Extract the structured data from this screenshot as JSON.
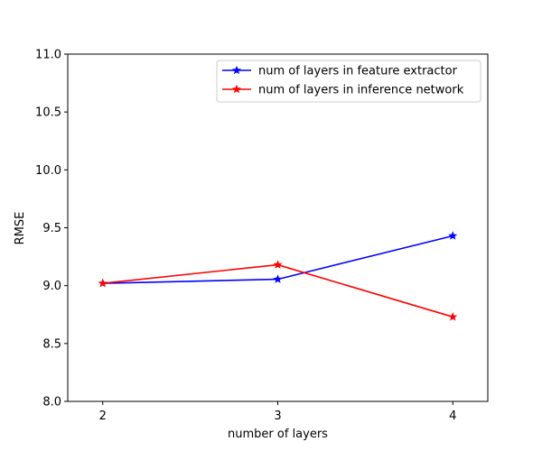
{
  "chart_data": {
    "type": "line",
    "title": "",
    "xlabel": "number of layers",
    "ylabel": "RMSE",
    "x": [
      2,
      3,
      4
    ],
    "x_tick_labels": [
      "2",
      "3",
      "4"
    ],
    "xlim": [
      1.8,
      4.2
    ],
    "ylim": [
      8.0,
      11.0
    ],
    "y_ticks": [
      8.0,
      8.5,
      9.0,
      9.5,
      10.0,
      10.5,
      11.0
    ],
    "y_tick_labels": [
      "8.0",
      "8.5",
      "9.0",
      "9.5",
      "10.0",
      "10.5",
      "11.0"
    ],
    "grid": false,
    "legend_position": "top-right",
    "series": [
      {
        "name": "num of layers in feature extractor",
        "color": "#0000ff",
        "marker": "star",
        "values": [
          9.02,
          9.055,
          9.43
        ]
      },
      {
        "name": "num of layers in inference network",
        "color": "#ff0000",
        "marker": "star",
        "values": [
          9.02,
          9.18,
          8.73
        ]
      }
    ]
  }
}
